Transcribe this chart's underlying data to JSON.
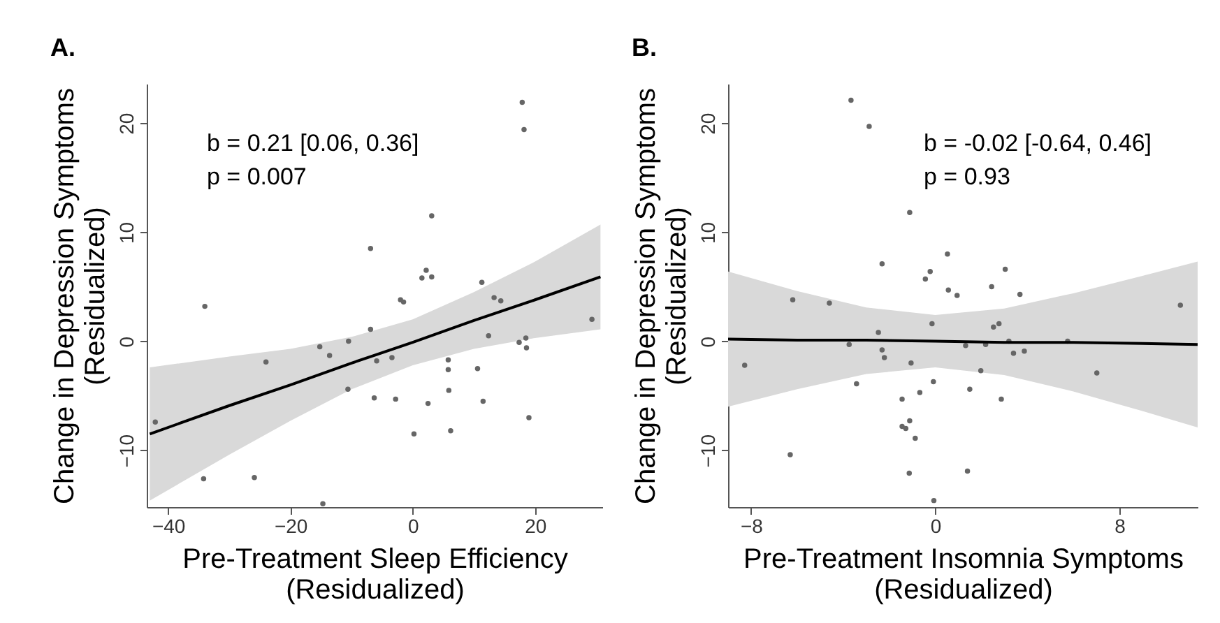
{
  "chart_data": [
    {
      "type": "scatter",
      "title": "A.",
      "xlabel": "Pre-Treatment Sleep Efficiency\n(Residualized)",
      "ylabel": "Change in Depression Symptoms\n(Residualized)",
      "annotations": [
        "b = 0.21 [0.06, 0.36]",
        "p = 0.007"
      ],
      "xlim": [
        -43.5,
        31
      ],
      "xticks": [
        -40,
        -20,
        0,
        20
      ],
      "ylim": [
        -15.2,
        23.6
      ],
      "yticks": [
        -10,
        0,
        10,
        20
      ],
      "grid": false,
      "series": [
        {
          "type": "scatter",
          "color": "#666666",
          "marker": "circle",
          "x": [
            17.9,
            18.2,
            3.1,
            -6.9,
            2.2,
            1.5,
            3.1,
            11.3,
            13.3,
            14.4,
            -2.0,
            -1.5,
            -34.0,
            29.3,
            -6.9,
            12.4,
            -10.5,
            -15.2,
            -13.6,
            -24.0,
            -5.9,
            -3.4,
            17.4,
            18.5,
            18.6,
            5.8,
            5.8,
            10.6,
            -10.6,
            -6.3,
            -2.8,
            2.5,
            5.9,
            11.5,
            -42.1,
            0.2,
            6.2,
            19.0,
            -34.2,
            -25.9,
            -14.7
          ],
          "values": [
            21.9,
            19.4,
            11.5,
            8.5,
            6.5,
            5.8,
            5.9,
            5.4,
            4.0,
            3.7,
            3.8,
            3.6,
            3.2,
            2.0,
            1.1,
            0.5,
            0.0,
            -0.5,
            -1.3,
            -1.9,
            -1.8,
            -1.5,
            -0.1,
            0.3,
            -0.6,
            -1.7,
            -2.6,
            -2.5,
            -4.4,
            -5.2,
            -5.3,
            -5.7,
            -4.5,
            -5.5,
            -7.4,
            -8.5,
            -8.2,
            -7.0,
            -12.6,
            -12.5,
            -14.9
          ]
        },
        {
          "type": "line",
          "color": "#000000",
          "x": [
            -43,
            -30,
            -20,
            -10,
            0,
            10,
            20,
            30.7
          ],
          "values": [
            -8.5,
            -5.9,
            -4.0,
            -2.0,
            -0.1,
            1.9,
            3.8,
            5.9
          ],
          "lower": [
            -14.6,
            -10.4,
            -7.3,
            -4.4,
            -2.2,
            -0.7,
            0.3,
            1.1
          ],
          "upper": [
            -2.4,
            -1.4,
            -0.7,
            0.4,
            2.0,
            4.5,
            7.3,
            10.7
          ]
        }
      ]
    },
    {
      "type": "scatter",
      "title": "B.",
      "xlabel": "Pre-Treatment Insomnia Symptoms\n(Residualized)",
      "ylabel": "Change in Depression Symptoms\n(Residualized)",
      "annotations": [
        "b = -0.02 [-0.64, 0.46]",
        "p = 0.93"
      ],
      "xlim": [
        -9.0,
        11.4
      ],
      "xticks": [
        -8,
        0,
        8
      ],
      "ylim": [
        -15.2,
        23.6
      ],
      "yticks": [
        -10,
        0,
        10,
        20
      ],
      "grid": false,
      "series": [
        {
          "type": "scatter",
          "color": "#666666",
          "marker": "circle",
          "x": [
            -3.66,
            -2.87,
            -1.11,
            0.53,
            -2.31,
            -0.22,
            -0.43,
            3.04,
            0.57,
            0.95,
            2.45,
            3.68,
            -6.19,
            -4.6,
            10.65,
            -0.14,
            2.53,
            2.77,
            -2.47,
            -3.74,
            -2.31,
            -2.21,
            1.32,
            2.19,
            3.2,
            3.4,
            3.87,
            5.75,
            -8.28,
            -1.05,
            1.98,
            -3.42,
            -0.08,
            -0.67,
            1.5,
            -1.44,
            2.87,
            7.02,
            -1.44,
            -1.28,
            -1.11,
            -0.87,
            -6.3,
            -1.13,
            1.4,
            -0.06
          ],
          "values": [
            22.1,
            19.7,
            11.8,
            8.0,
            7.1,
            6.4,
            5.7,
            6.6,
            4.7,
            4.2,
            5.0,
            4.3,
            3.8,
            3.5,
            3.3,
            1.6,
            1.3,
            1.6,
            0.8,
            -0.3,
            -0.8,
            -1.5,
            -0.4,
            -0.3,
            0.0,
            -1.1,
            -0.9,
            0.0,
            -2.2,
            -2.0,
            -2.7,
            -3.9,
            -3.7,
            -4.7,
            -4.4,
            -5.3,
            -5.3,
            -2.9,
            -7.8,
            -8.0,
            -7.3,
            -8.9,
            -10.4,
            -12.1,
            -11.9,
            -14.6
          ]
        },
        {
          "type": "line",
          "color": "#000000",
          "x": [
            -9,
            -6,
            -3,
            0,
            3,
            6,
            9,
            11.4
          ],
          "values": [
            0.2,
            0.1,
            0.1,
            0.0,
            -0.1,
            -0.1,
            -0.2,
            -0.3
          ],
          "lower": [
            -6.0,
            -4.4,
            -3.0,
            -2.4,
            -3.1,
            -4.6,
            -6.4,
            -7.9
          ],
          "upper": [
            6.4,
            4.6,
            3.1,
            2.4,
            3.0,
            4.4,
            6.0,
            7.3
          ]
        }
      ]
    }
  ]
}
